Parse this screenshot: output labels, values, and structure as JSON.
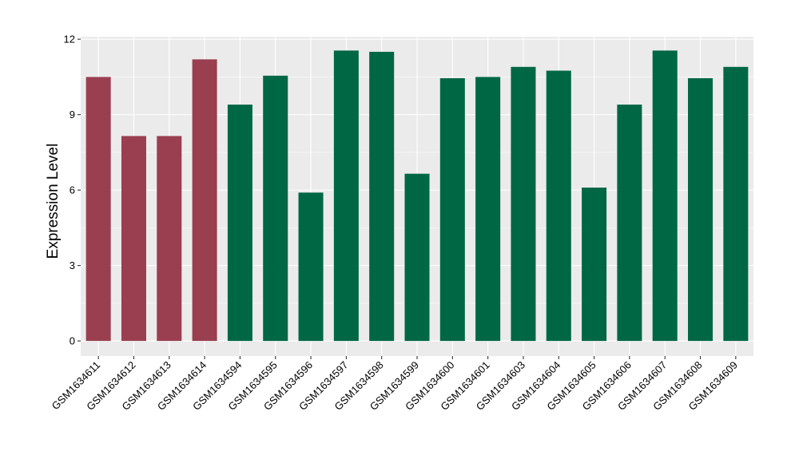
{
  "chart_data": {
    "type": "bar",
    "title": "",
    "xlabel": "",
    "ylabel": "Expression Level",
    "ylim": [
      -0.6,
      12.1
    ],
    "yticks": [
      0,
      3,
      6,
      9,
      12
    ],
    "grid": true,
    "legend": "none",
    "colors": {
      "panel_background": "#EBEBEB",
      "grid_major": "#FFFFFF",
      "group_a": "#9A3F50",
      "group_b": "#006745"
    },
    "categories": [
      "GSM1634611",
      "GSM1634612",
      "GSM1634613",
      "GSM1634614",
      "GSM1634594",
      "GSM1634595",
      "GSM1634596",
      "GSM1634597",
      "GSM1634598",
      "GSM1634599",
      "GSM1634600",
      "GSM1634601",
      "GSM1634603",
      "GSM1634604",
      "GSM1634605",
      "GSM1634606",
      "GSM1634607",
      "GSM1634608",
      "GSM1634609"
    ],
    "values": [
      10.5,
      8.15,
      8.15,
      11.2,
      9.4,
      10.55,
      5.9,
      11.55,
      11.5,
      6.65,
      10.45,
      10.5,
      10.9,
      10.75,
      6.1,
      9.4,
      11.55,
      10.45,
      10.9
    ],
    "bar_colors": [
      "#9A3F50",
      "#9A3F50",
      "#9A3F50",
      "#9A3F50",
      "#006745",
      "#006745",
      "#006745",
      "#006745",
      "#006745",
      "#006745",
      "#006745",
      "#006745",
      "#006745",
      "#006745",
      "#006745",
      "#006745",
      "#006745",
      "#006745",
      "#006745"
    ]
  }
}
